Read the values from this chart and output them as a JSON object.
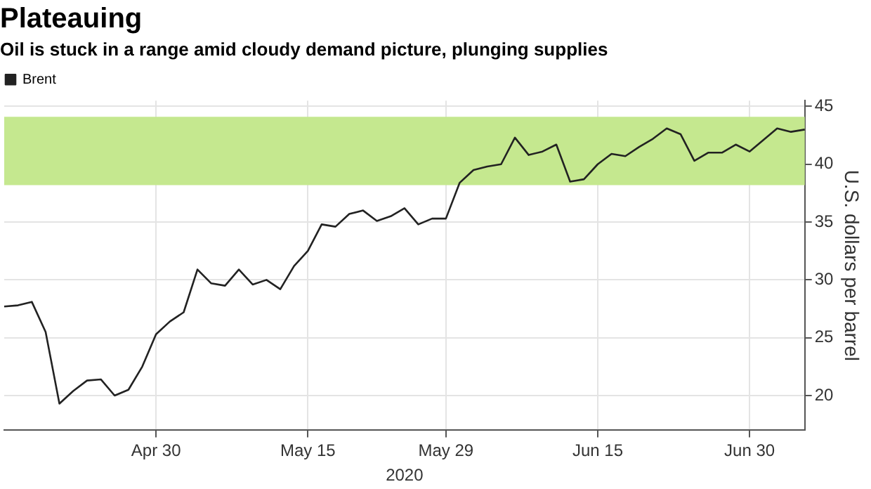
{
  "chart_data": {
    "type": "line",
    "title": "Plateauing",
    "subtitle": "Oil is stuck in a range amid cloudy demand picture, plunging supplies",
    "xlabel": "2020",
    "ylabel": "U.S. dollars per barrel",
    "categories": [
      null,
      null,
      null,
      null,
      null,
      null,
      null,
      null,
      null,
      null,
      null,
      "Apr 30",
      null,
      null,
      null,
      null,
      null,
      null,
      null,
      null,
      null,
      null,
      "May 15",
      null,
      null,
      null,
      null,
      null,
      null,
      null,
      null,
      null,
      "May 29",
      null,
      null,
      null,
      null,
      null,
      null,
      null,
      null,
      null,
      null,
      "Jun 15",
      null,
      null,
      null,
      null,
      null,
      null,
      null,
      null,
      null,
      null,
      "Jun 30",
      null,
      null,
      null,
      null
    ],
    "series": [
      {
        "name": "Brent",
        "color": "#222222",
        "values": [
          27.7,
          27.8,
          28.1,
          25.5,
          19.3,
          20.4,
          21.3,
          21.4,
          20.0,
          20.5,
          22.5,
          25.3,
          26.4,
          27.2,
          30.9,
          29.7,
          29.5,
          30.9,
          29.6,
          30.0,
          29.2,
          31.2,
          32.5,
          34.8,
          34.6,
          35.7,
          36.0,
          35.1,
          35.5,
          36.2,
          34.8,
          35.3,
          35.3,
          38.4,
          39.5,
          39.8,
          40.0,
          42.3,
          40.8,
          41.1,
          41.7,
          38.5,
          38.7,
          40.0,
          40.9,
          40.7,
          41.5,
          42.2,
          43.1,
          42.6,
          40.3,
          41.0,
          41.0,
          41.7,
          41.1,
          42.1,
          43.1,
          42.8,
          43.0
        ]
      }
    ],
    "ylim": [
      17,
      45.5
    ],
    "yticks": [
      20,
      25,
      30,
      35,
      40,
      45
    ],
    "grid": true,
    "legend": "top left",
    "bands": [
      {
        "axis": "y",
        "from": 38.2,
        "to": 44.1,
        "color": "#c5e88f"
      }
    ]
  }
}
